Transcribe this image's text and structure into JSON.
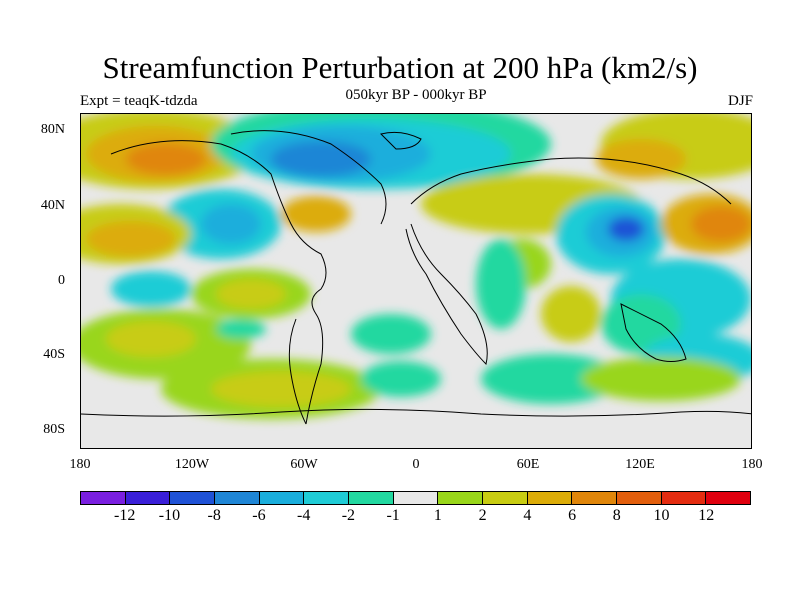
{
  "title": "Streamfunction Perturbation at 200 hPa (km2/s)",
  "subtitle": "050kyr BP - 000kyr BP",
  "experiment": "Expt = teaqK-tdzda",
  "season": "DJF",
  "lat_labels": [
    "80N",
    "40N",
    "0",
    "40S",
    "80S"
  ],
  "lon_labels": [
    "180",
    "120W",
    "60W",
    "0",
    "60E",
    "120E",
    "180"
  ],
  "colorbar": {
    "labels": [
      "-12",
      "-10",
      "-8",
      "-6",
      "-4",
      "-2",
      "-1",
      "1",
      "2",
      "4",
      "6",
      "8",
      "10",
      "12"
    ],
    "colors": [
      "#7a1fe0",
      "#3a1fd8",
      "#1f52d6",
      "#1f86d6",
      "#1aaedc",
      "#1fccd6",
      "#22d8a0",
      "#e8e8e8",
      "#99d61a",
      "#c8cc12",
      "#dcac08",
      "#e0860a",
      "#e25e0c",
      "#e42c10",
      "#e0000e"
    ]
  }
}
